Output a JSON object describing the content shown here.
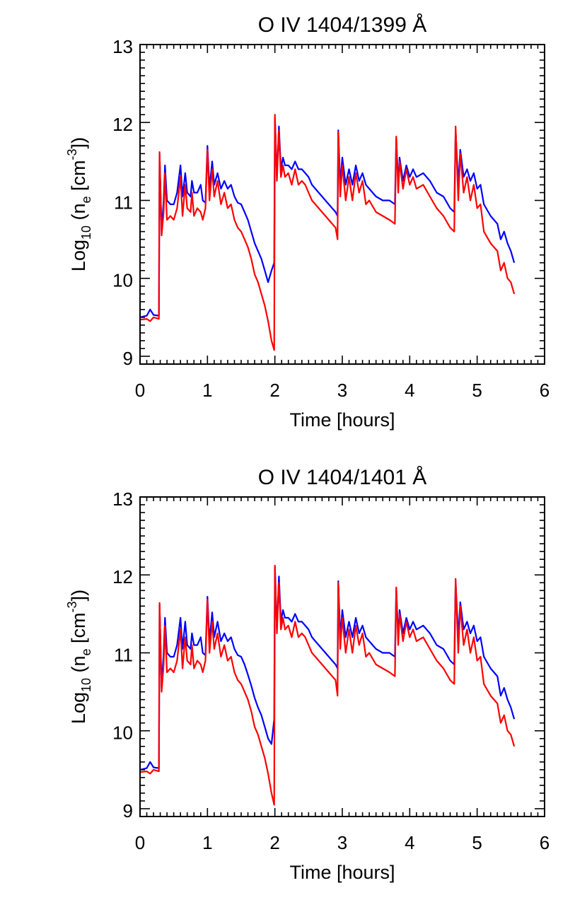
{
  "chart_data": [
    {
      "type": "line",
      "title": "O IV 1404/1399 Å",
      "xlabel": "Time [hours]",
      "ylabel": {
        "base": "Log",
        "sub1": "10",
        "mid": " (n",
        "sub2": "e",
        "mid2": " [cm",
        "sup": "-3",
        "end": "])"
      },
      "xlim": [
        0,
        6
      ],
      "ylim": [
        8.9,
        13
      ],
      "xticks": [
        0,
        1,
        2,
        3,
        4,
        5,
        6
      ],
      "yticks": [
        9,
        10,
        11,
        12,
        13
      ],
      "grid": false,
      "x": [
        0,
        0.1,
        0.15,
        0.2,
        0.28,
        0.29,
        0.32,
        0.35,
        0.37,
        0.4,
        0.45,
        0.5,
        0.55,
        0.6,
        0.63,
        0.67,
        0.7,
        0.75,
        0.77,
        0.8,
        0.85,
        0.9,
        0.93,
        0.97,
        1.0,
        1.03,
        1.07,
        1.1,
        1.15,
        1.2,
        1.25,
        1.3,
        1.35,
        1.4,
        1.45,
        1.5,
        1.55,
        1.6,
        1.65,
        1.7,
        1.75,
        1.8,
        1.85,
        1.9,
        1.95,
        1.99,
        2.0,
        2.03,
        2.06,
        2.09,
        2.12,
        2.15,
        2.2,
        2.25,
        2.3,
        2.35,
        2.4,
        2.45,
        2.5,
        2.55,
        2.6,
        2.7,
        2.8,
        2.9,
        2.93,
        2.94,
        2.97,
        3.0,
        3.05,
        3.1,
        3.15,
        3.2,
        3.25,
        3.3,
        3.35,
        3.4,
        3.5,
        3.6,
        3.7,
        3.78,
        3.8,
        3.83,
        3.85,
        3.9,
        3.95,
        4.0,
        4.05,
        4.1,
        4.2,
        4.3,
        4.4,
        4.5,
        4.6,
        4.66,
        4.68,
        4.72,
        4.75,
        4.8,
        4.85,
        4.9,
        4.95,
        5.0,
        5.05,
        5.1,
        5.2,
        5.3,
        5.35,
        5.4,
        5.45,
        5.5,
        5.55
      ],
      "series": [
        {
          "color": "#0000ff",
          "values": [
            9.5,
            9.52,
            9.6,
            9.53,
            9.52,
            11.6,
            10.6,
            11.0,
            11.45,
            11.0,
            10.95,
            10.95,
            11.1,
            11.45,
            11.05,
            11.35,
            11.1,
            11.05,
            11.25,
            11.1,
            11.1,
            11.2,
            11.0,
            10.97,
            11.7,
            11.15,
            11.5,
            11.2,
            11.35,
            11.15,
            11.25,
            11.15,
            11.2,
            11.05,
            10.97,
            10.95,
            10.85,
            10.75,
            10.6,
            10.45,
            10.35,
            10.25,
            10.1,
            9.95,
            10.1,
            10.2,
            12.05,
            11.3,
            11.95,
            11.4,
            11.55,
            11.45,
            11.45,
            11.4,
            11.5,
            11.4,
            11.4,
            11.35,
            11.3,
            11.2,
            11.15,
            11.05,
            10.95,
            10.85,
            10.8,
            11.9,
            11.2,
            11.55,
            11.2,
            11.4,
            11.2,
            11.45,
            11.25,
            11.35,
            11.2,
            11.15,
            11.05,
            11.0,
            11.0,
            10.95,
            11.8,
            11.2,
            11.55,
            11.25,
            11.45,
            11.3,
            11.4,
            11.3,
            11.35,
            11.25,
            11.1,
            11.05,
            10.9,
            10.85,
            11.9,
            11.2,
            11.65,
            11.3,
            11.4,
            11.25,
            11.35,
            11.15,
            11.2,
            10.95,
            10.8,
            10.7,
            10.5,
            10.6,
            10.45,
            10.35,
            10.2
          ]
        },
        {
          "color": "#ff0000",
          "values": [
            9.47,
            9.48,
            9.45,
            9.5,
            9.48,
            11.62,
            10.55,
            10.85,
            11.35,
            10.75,
            10.8,
            10.75,
            10.9,
            11.3,
            10.8,
            11.2,
            10.9,
            10.85,
            11.1,
            10.8,
            10.9,
            10.85,
            10.75,
            10.9,
            11.65,
            11.0,
            11.4,
            11.05,
            11.25,
            10.95,
            11.1,
            10.9,
            10.95,
            10.75,
            10.65,
            10.6,
            10.5,
            10.4,
            10.25,
            10.05,
            9.95,
            9.8,
            9.65,
            9.45,
            9.2,
            9.08,
            12.1,
            11.25,
            11.9,
            11.3,
            11.45,
            11.3,
            11.35,
            11.2,
            11.4,
            11.2,
            11.25,
            11.2,
            11.1,
            11.0,
            10.95,
            10.85,
            10.75,
            10.65,
            10.5,
            11.88,
            11.05,
            11.45,
            11.0,
            11.3,
            11.0,
            11.35,
            11.1,
            11.25,
            10.95,
            11.0,
            10.85,
            10.8,
            10.75,
            10.7,
            11.82,
            11.1,
            11.5,
            11.15,
            11.4,
            11.2,
            11.3,
            11.15,
            11.2,
            11.05,
            10.9,
            10.8,
            10.65,
            10.6,
            11.95,
            11.0,
            11.6,
            11.1,
            11.3,
            11.0,
            11.2,
            10.9,
            10.95,
            10.6,
            10.45,
            10.35,
            10.1,
            10.2,
            10.0,
            9.95,
            9.8
          ]
        }
      ]
    },
    {
      "type": "line",
      "title": "O IV 1404/1401 Å",
      "xlabel": "Time [hours]",
      "ylabel": {
        "base": "Log",
        "sub1": "10",
        "mid": " (n",
        "sub2": "e",
        "mid2": " [cm",
        "sup": "-3",
        "end": "])"
      },
      "xlim": [
        0,
        6
      ],
      "ylim": [
        8.9,
        13
      ],
      "xticks": [
        0,
        1,
        2,
        3,
        4,
        5,
        6
      ],
      "yticks": [
        9,
        10,
        11,
        12,
        13
      ],
      "grid": false,
      "x": [
        0,
        0.1,
        0.15,
        0.2,
        0.28,
        0.29,
        0.32,
        0.35,
        0.37,
        0.4,
        0.45,
        0.5,
        0.55,
        0.6,
        0.63,
        0.67,
        0.7,
        0.75,
        0.77,
        0.8,
        0.85,
        0.9,
        0.93,
        0.97,
        1.0,
        1.03,
        1.07,
        1.1,
        1.15,
        1.2,
        1.25,
        1.3,
        1.35,
        1.4,
        1.45,
        1.5,
        1.55,
        1.6,
        1.65,
        1.7,
        1.75,
        1.8,
        1.85,
        1.9,
        1.95,
        1.99,
        2.0,
        2.03,
        2.06,
        2.09,
        2.12,
        2.15,
        2.2,
        2.25,
        2.3,
        2.35,
        2.4,
        2.45,
        2.5,
        2.55,
        2.6,
        2.7,
        2.8,
        2.9,
        2.93,
        2.94,
        2.97,
        3.0,
        3.05,
        3.1,
        3.15,
        3.2,
        3.25,
        3.3,
        3.35,
        3.4,
        3.5,
        3.6,
        3.7,
        3.78,
        3.8,
        3.83,
        3.85,
        3.9,
        3.95,
        4.0,
        4.05,
        4.1,
        4.2,
        4.3,
        4.4,
        4.5,
        4.6,
        4.66,
        4.68,
        4.72,
        4.75,
        4.8,
        4.85,
        4.9,
        4.95,
        5.0,
        5.05,
        5.1,
        5.2,
        5.3,
        5.35,
        5.4,
        5.45,
        5.5,
        5.55
      ],
      "series": [
        {
          "color": "#0000ff",
          "values": [
            9.5,
            9.52,
            9.6,
            9.53,
            9.52,
            11.62,
            10.55,
            11.0,
            11.45,
            11.0,
            10.95,
            10.95,
            11.1,
            11.45,
            11.05,
            11.4,
            11.1,
            11.05,
            11.25,
            11.1,
            11.1,
            11.2,
            11.0,
            10.97,
            11.72,
            11.15,
            11.52,
            11.2,
            11.4,
            11.15,
            11.25,
            11.15,
            11.2,
            11.05,
            10.97,
            10.95,
            10.85,
            10.72,
            10.58,
            10.42,
            10.3,
            10.2,
            10.05,
            9.9,
            9.83,
            10.15,
            12.1,
            11.3,
            11.98,
            11.4,
            11.55,
            11.45,
            11.45,
            11.4,
            11.5,
            11.4,
            11.4,
            11.35,
            11.3,
            11.2,
            11.15,
            11.05,
            10.95,
            10.85,
            10.8,
            11.92,
            11.2,
            11.55,
            11.2,
            11.4,
            11.2,
            11.45,
            11.25,
            11.35,
            11.2,
            11.15,
            11.05,
            11.0,
            11.0,
            10.95,
            11.82,
            11.2,
            11.55,
            11.25,
            11.45,
            11.3,
            11.4,
            11.3,
            11.35,
            11.25,
            11.1,
            11.05,
            10.9,
            10.85,
            11.92,
            11.2,
            11.65,
            11.3,
            11.4,
            11.25,
            11.35,
            11.15,
            11.2,
            10.95,
            10.8,
            10.7,
            10.45,
            10.55,
            10.4,
            10.3,
            10.15
          ]
        },
        {
          "color": "#ff0000",
          "values": [
            9.47,
            9.48,
            9.45,
            9.5,
            9.48,
            11.64,
            10.5,
            10.85,
            11.35,
            10.75,
            10.8,
            10.75,
            10.9,
            11.3,
            10.8,
            11.2,
            10.9,
            10.85,
            11.1,
            10.8,
            10.9,
            10.85,
            10.75,
            10.9,
            11.68,
            11.0,
            11.4,
            11.05,
            11.25,
            10.95,
            11.1,
            10.9,
            10.95,
            10.75,
            10.65,
            10.6,
            10.5,
            10.4,
            10.25,
            10.05,
            9.95,
            9.8,
            9.65,
            9.45,
            9.2,
            9.05,
            12.12,
            11.25,
            11.9,
            11.3,
            11.45,
            11.3,
            11.35,
            11.2,
            11.4,
            11.2,
            11.25,
            11.2,
            11.1,
            11.0,
            10.95,
            10.85,
            10.75,
            10.65,
            10.45,
            11.9,
            11.05,
            11.45,
            11.0,
            11.3,
            11.0,
            11.35,
            11.1,
            11.25,
            10.95,
            11.0,
            10.85,
            10.8,
            10.75,
            10.7,
            11.84,
            11.1,
            11.5,
            11.15,
            11.4,
            11.2,
            11.3,
            11.15,
            11.2,
            11.05,
            10.9,
            10.8,
            10.65,
            10.6,
            11.95,
            11.0,
            11.6,
            11.1,
            11.3,
            11.0,
            11.2,
            10.9,
            10.95,
            10.6,
            10.45,
            10.35,
            10.1,
            10.2,
            10.0,
            9.95,
            9.8
          ]
        }
      ]
    }
  ]
}
